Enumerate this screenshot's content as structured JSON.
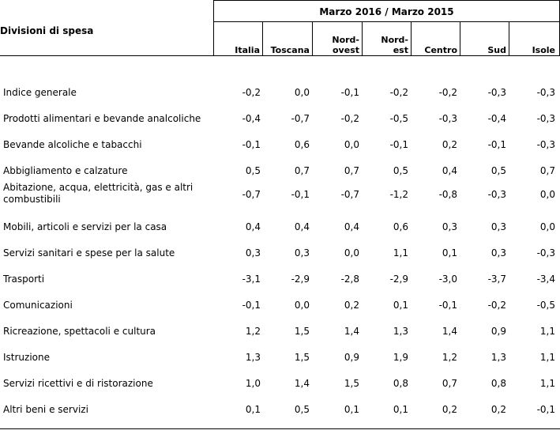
{
  "table": {
    "title": "Divisioni di spesa",
    "period": "Marzo 2016 / Marzo 2015",
    "columns": [
      "Italia",
      "Toscana",
      "Nord-\novest",
      "Nord-\nest",
      "Centro",
      "Sud",
      "Isole"
    ],
    "rows": [
      {
        "label": "Indice generale",
        "values": [
          "-0,2",
          "0,0",
          "-0,1",
          "-0,2",
          "-0,2",
          "-0,3",
          "-0,3"
        ]
      },
      {
        "label": "Prodotti alimentari e bevande analcoliche",
        "values": [
          "-0,4",
          "-0,7",
          "-0,2",
          "-0,5",
          "-0,3",
          "-0,4",
          "-0,3"
        ]
      },
      {
        "label": "Bevande alcoliche e tabacchi",
        "values": [
          "-0,1",
          "0,6",
          "0,0",
          "-0,1",
          "0,2",
          "-0,1",
          "-0,3"
        ]
      },
      {
        "label": "Abbigliamento e calzature",
        "values": [
          "0,5",
          "0,7",
          "0,7",
          "0,5",
          "0,4",
          "0,5",
          "0,7"
        ]
      },
      {
        "label": "Abitazione, acqua, elettricità, gas e altri\ncombustibili",
        "values": [
          "-0,7",
          "-0,1",
          "-0,7",
          "-1,2",
          "-0,8",
          "-0,3",
          "0,0"
        ]
      },
      {
        "label": "Mobili, articoli e servizi per la casa",
        "values": [
          "0,4",
          "0,4",
          "0,4",
          "0,6",
          "0,3",
          "0,3",
          "0,0"
        ]
      },
      {
        "label": "Servizi sanitari e spese per la salute",
        "values": [
          "0,3",
          "0,3",
          "0,0",
          "1,1",
          "0,1",
          "0,3",
          "-0,3"
        ]
      },
      {
        "label": "Trasporti",
        "values": [
          "-3,1",
          "-2,9",
          "-2,8",
          "-2,9",
          "-3,0",
          "-3,7",
          "-3,4"
        ]
      },
      {
        "label": "Comunicazioni",
        "values": [
          "-0,1",
          "0,0",
          "0,2",
          "0,1",
          "-0,1",
          "-0,2",
          "-0,5"
        ]
      },
      {
        "label": "Ricreazione, spettacoli e cultura",
        "values": [
          "1,2",
          "1,5",
          "1,4",
          "1,3",
          "1,4",
          "0,9",
          "1,1"
        ]
      },
      {
        "label": "Istruzione",
        "values": [
          "1,3",
          "1,5",
          "0,9",
          "1,9",
          "1,2",
          "1,3",
          "1,1"
        ]
      },
      {
        "label": "Servizi ricettivi e di ristorazione",
        "values": [
          "1,0",
          "1,4",
          "1,5",
          "0,8",
          "0,7",
          "0,8",
          "1,1"
        ]
      },
      {
        "label": "Altri beni e servizi",
        "values": [
          "0,1",
          "0,5",
          "0,1",
          "0,1",
          "0,2",
          "0,2",
          "-0,1"
        ]
      }
    ]
  }
}
